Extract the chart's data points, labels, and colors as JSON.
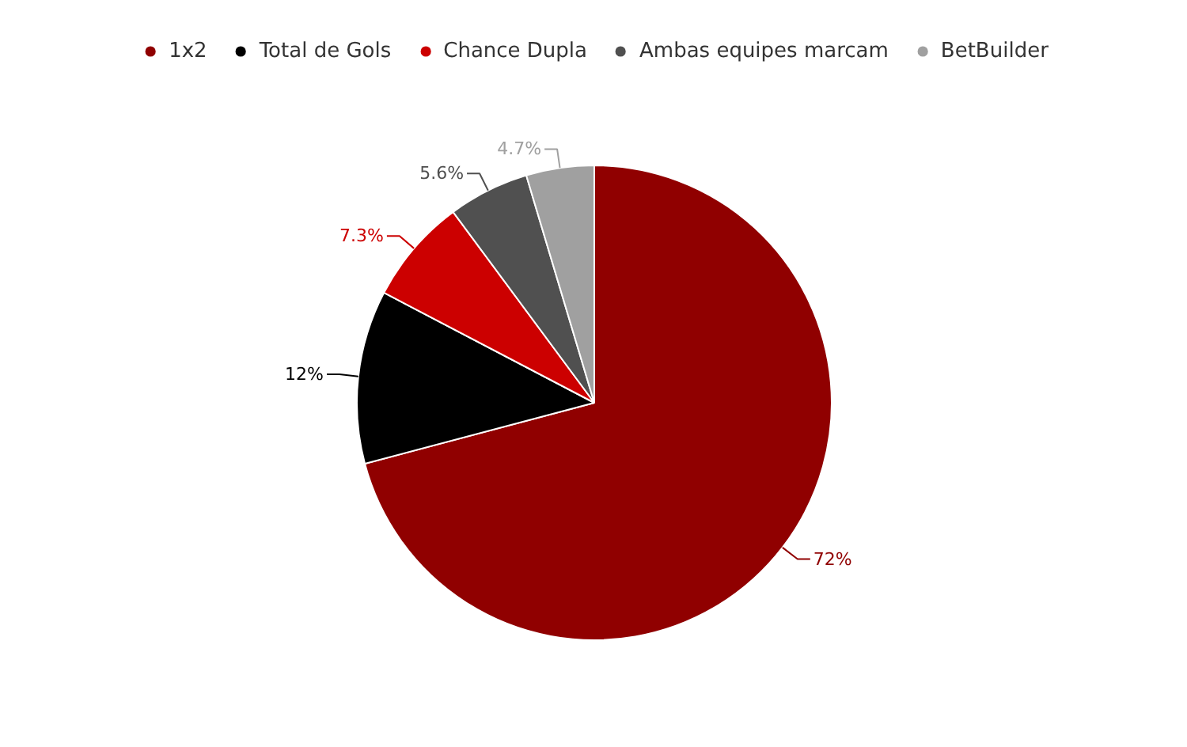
{
  "chart_data": {
    "type": "pie",
    "categories": [
      "1x2",
      "Total de Gols",
      "Chance Dupla",
      "Ambas equipes marcam",
      "BetBuilder"
    ],
    "values": [
      72,
      12,
      7.3,
      5.6,
      4.7
    ],
    "colors": [
      "#900000",
      "#000000",
      "#cc0000",
      "#505050",
      "#a0a0a0"
    ],
    "value_labels": [
      "72%",
      "12%",
      "7.3%",
      "5.6%",
      "4.7%"
    ],
    "legend": "top"
  }
}
